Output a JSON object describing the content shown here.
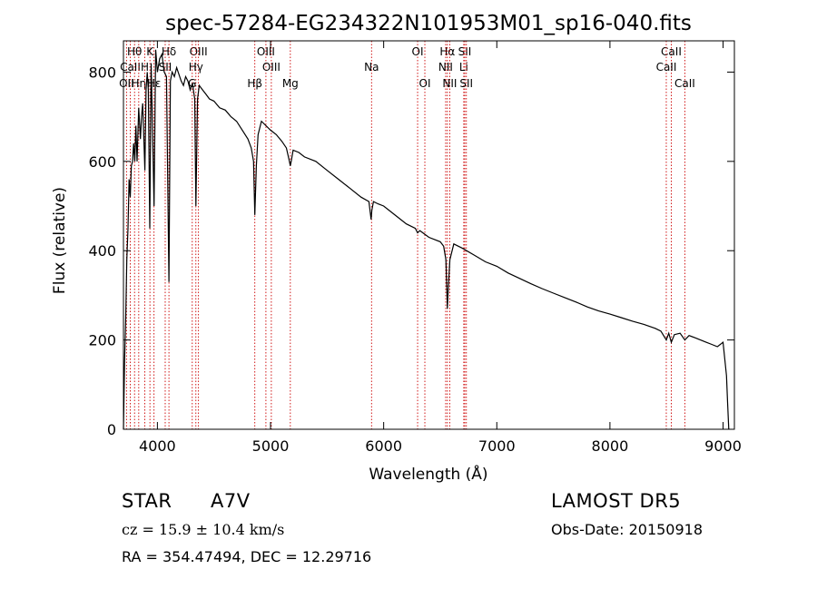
{
  "chart_data": {
    "type": "line",
    "title": "spec-57284-EG234322N101953M01_sp16-040.fits",
    "xlabel": "Wavelength (Å)",
    "ylabel": "Flux (relative)",
    "xlim": [
      3700,
      9100
    ],
    "ylim": [
      0,
      870
    ],
    "x_ticks": [
      4000,
      5000,
      6000,
      7000,
      8000,
      9000
    ],
    "y_ticks": [
      0,
      200,
      400,
      600,
      800
    ],
    "grid": false,
    "series": [
      {
        "x": [
          3700,
          3710,
          3720,
          3730,
          3740,
          3750,
          3760,
          3770,
          3780,
          3790,
          3800,
          3810,
          3820,
          3835,
          3850,
          3860,
          3870,
          3889,
          3900,
          3910,
          3920,
          3933,
          3945,
          3955,
          3970,
          3985,
          4000,
          4020,
          4040,
          4060,
          4080,
          4102,
          4115,
          4130,
          4150,
          4170,
          4190,
          4210,
          4230,
          4250,
          4270,
          4290,
          4310,
          4330,
          4340,
          4355,
          4370,
          4400,
          4430,
          4460,
          4500,
          4550,
          4600,
          4650,
          4700,
          4750,
          4800,
          4830,
          4850,
          4861,
          4875,
          4890,
          4920,
          4960,
          5000,
          5050,
          5100,
          5140,
          5167,
          5175,
          5183,
          5200,
          5250,
          5300,
          5400,
          5500,
          5600,
          5700,
          5800,
          5870,
          5889,
          5895,
          5910,
          5950,
          6000,
          6100,
          6200,
          6280,
          6300,
          6320,
          6400,
          6450,
          6500,
          6530,
          6550,
          6560,
          6563,
          6570,
          6585,
          6620,
          6700,
          6800,
          6900,
          7000,
          7100,
          7200,
          7300,
          7400,
          7500,
          7600,
          7700,
          7800,
          7900,
          8000,
          8100,
          8200,
          8300,
          8400,
          8450,
          8498,
          8520,
          8542,
          8570,
          8620,
          8662,
          8700,
          8750,
          8800,
          8850,
          8900,
          8950,
          9000,
          9030,
          9040,
          9050
        ],
        "y": [
          0,
          150,
          250,
          380,
          450,
          560,
          520,
          590,
          600,
          640,
          600,
          680,
          600,
          720,
          650,
          700,
          730,
          580,
          760,
          800,
          760,
          450,
          820,
          700,
          500,
          850,
          800,
          830,
          840,
          800,
          790,
          330,
          780,
          800,
          790,
          810,
          795,
          780,
          770,
          790,
          780,
          760,
          775,
          740,
          500,
          740,
          770,
          760,
          750,
          740,
          735,
          720,
          715,
          700,
          690,
          670,
          650,
          630,
          600,
          480,
          590,
          660,
          690,
          680,
          670,
          660,
          645,
          630,
          600,
          590,
          600,
          625,
          620,
          610,
          600,
          580,
          560,
          540,
          520,
          510,
          470,
          490,
          510,
          505,
          500,
          480,
          460,
          450,
          440,
          445,
          430,
          425,
          420,
          410,
          380,
          300,
          270,
          310,
          380,
          415,
          405,
          390,
          375,
          365,
          350,
          338,
          326,
          315,
          305,
          295,
          285,
          274,
          265,
          258,
          250,
          242,
          235,
          226,
          220,
          200,
          215,
          195,
          212,
          215,
          200,
          210,
          205,
          200,
          195,
          190,
          185,
          195,
          120,
          60,
          0
        ]
      }
    ]
  },
  "line_labels": [
    {
      "label": "OII",
      "wl": 3727,
      "row": 2
    },
    {
      "label": "Hθ",
      "wl": 3798,
      "row": 0
    },
    {
      "label": "CaII",
      "wl": 3760,
      "row": 1
    },
    {
      "label": "Hη",
      "wl": 3835,
      "row": 2
    },
    {
      "label": "K",
      "wl": 3934,
      "row": 0
    },
    {
      "label": "H",
      "wl": 3889,
      "row": 1
    },
    {
      "label": "Hε",
      "wl": 3970,
      "row": 2
    },
    {
      "label": "Hδ",
      "wl": 4102,
      "row": 0
    },
    {
      "label": "SII",
      "wl": 4069,
      "row": 1
    },
    {
      "label": "OIII",
      "wl": 4363,
      "row": 0
    },
    {
      "label": "Hγ",
      "wl": 4340,
      "row": 1
    },
    {
      "label": "G",
      "wl": 4308,
      "row": 2
    },
    {
      "label": "OIII",
      "wl": 4959,
      "row": 0
    },
    {
      "label": "OIII",
      "wl": 5007,
      "row": 1
    },
    {
      "label": "Hβ",
      "wl": 4861,
      "row": 2
    },
    {
      "label": "Mg",
      "wl": 5175,
      "row": 2
    },
    {
      "label": "Na",
      "wl": 5893,
      "row": 1
    },
    {
      "label": "OI",
      "wl": 6300,
      "row": 0
    },
    {
      "label": "OI",
      "wl": 6364,
      "row": 2
    },
    {
      "label": "Hα",
      "wl": 6563,
      "row": 0
    },
    {
      "label": "SII",
      "wl": 6717,
      "row": 0
    },
    {
      "label": "NII",
      "wl": 6548,
      "row": 1
    },
    {
      "label": "Li",
      "wl": 6708,
      "row": 1
    },
    {
      "label": "NII",
      "wl": 6584,
      "row": 2
    },
    {
      "label": "SII",
      "wl": 6731,
      "row": 2
    },
    {
      "label": "CaII",
      "wl": 8542,
      "row": 0
    },
    {
      "label": "CaII",
      "wl": 8498,
      "row": 1
    },
    {
      "label": "CaII",
      "wl": 8662,
      "row": 2
    }
  ],
  "info": {
    "object_class": "STAR",
    "subclass": "A7V",
    "survey": "LAMOST DR5",
    "redshift_text": "cz = 15.9 ± 10.4 km/s",
    "obs_date": "Obs-Date: 20150918",
    "coords": "RA = 354.47494, DEC =  12.29716"
  },
  "colors": {
    "spectrum": "#000000",
    "line_markers": "#cc0000",
    "axes": "#000000"
  }
}
